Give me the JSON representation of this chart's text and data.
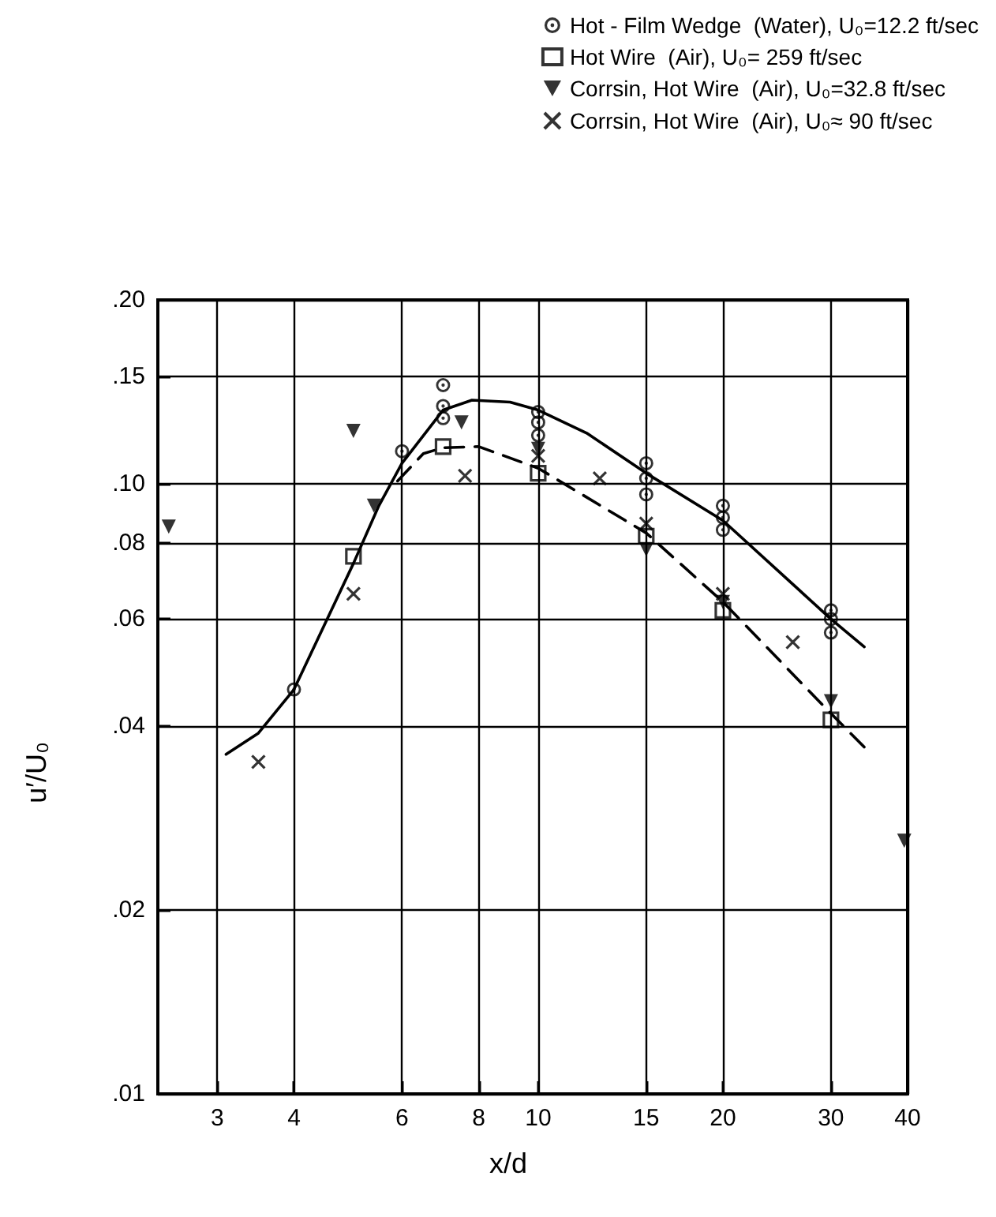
{
  "chart_data": {
    "type": "scatter",
    "xlabel": "x/d",
    "ylabel": "u′/U₀",
    "log": "xy",
    "grid": true,
    "legend": "top right",
    "xlim": [
      2.4,
      40
    ],
    "xticks": [
      3,
      4,
      6,
      8,
      10,
      15,
      20,
      30,
      40
    ],
    "ylim": [
      0.01,
      0.2
    ],
    "yticks": [
      {
        "value": 0.01,
        "label": ".01"
      },
      {
        "value": 0.02,
        "label": ".02"
      },
      {
        "value": 0.04,
        "label": ".04"
      },
      {
        "value": 0.06,
        "label": ".06"
      },
      {
        "value": 0.08,
        "label": ".08"
      },
      {
        "value": 0.1,
        "label": ".10"
      },
      {
        "value": 0.15,
        "label": ".15"
      },
      {
        "value": 0.2,
        "label": ".20"
      }
    ],
    "series": [
      {
        "name": "Hot - Film Wedge  (Water), U₀=12.2 ft/sec",
        "marker": "circle",
        "color": "#000000",
        "x": [
          4,
          6,
          7,
          7,
          7,
          10,
          10,
          10,
          15,
          15,
          15,
          20,
          20,
          20,
          30,
          30,
          30
        ],
        "values": [
          0.046,
          0.113,
          0.145,
          0.134,
          0.128,
          0.131,
          0.126,
          0.12,
          0.108,
          0.102,
          0.096,
          0.092,
          0.088,
          0.084,
          0.062,
          0.06,
          0.057
        ]
      },
      {
        "name": "Hot Wire  (Air), U₀= 259 ft/sec",
        "marker": "square",
        "color": "#000000",
        "x": [
          5,
          7,
          10,
          15,
          20,
          30
        ],
        "values": [
          0.076,
          0.115,
          0.104,
          0.082,
          0.062,
          0.041
        ]
      },
      {
        "name": "Corrsin, Hot Wire  (Air), U₀=32.8 ft/sec",
        "marker": "triangle",
        "color": "#000000",
        "x": [
          2.5,
          5,
          5.4,
          7.5,
          10,
          15,
          20,
          30,
          39.5
        ],
        "values": [
          0.085,
          0.122,
          0.092,
          0.126,
          0.114,
          0.078,
          0.064,
          0.044,
          0.026
        ]
      },
      {
        "name": "Corrsin, Hot Wire  (Air), U₀≈ 90 ft/sec",
        "marker": "cross",
        "color": "#000000",
        "x": [
          3.5,
          5,
          7.6,
          10,
          12.6,
          15,
          20,
          26
        ],
        "values": [
          0.035,
          0.066,
          0.103,
          0.111,
          0.102,
          0.086,
          0.066,
          0.055
        ]
      },
      {
        "type": "line",
        "marker": "none",
        "line_style": "solid",
        "color": "#000000",
        "x": [
          3.1,
          3.5,
          4,
          5,
          5.5,
          6,
          7,
          7.8,
          9,
          10,
          12,
          15,
          20,
          30,
          34
        ],
        "values": [
          0.036,
          0.039,
          0.046,
          0.074,
          0.092,
          0.108,
          0.132,
          0.137,
          0.136,
          0.132,
          0.121,
          0.104,
          0.087,
          0.06,
          0.054
        ]
      },
      {
        "type": "line",
        "marker": "none",
        "line_style": "dashed",
        "color": "#000000",
        "x": [
          5.9,
          6.5,
          7,
          8,
          10,
          15,
          20,
          30,
          34
        ],
        "values": [
          0.101,
          0.112,
          0.1145,
          0.115,
          0.106,
          0.083,
          0.064,
          0.042,
          0.037
        ]
      }
    ]
  }
}
